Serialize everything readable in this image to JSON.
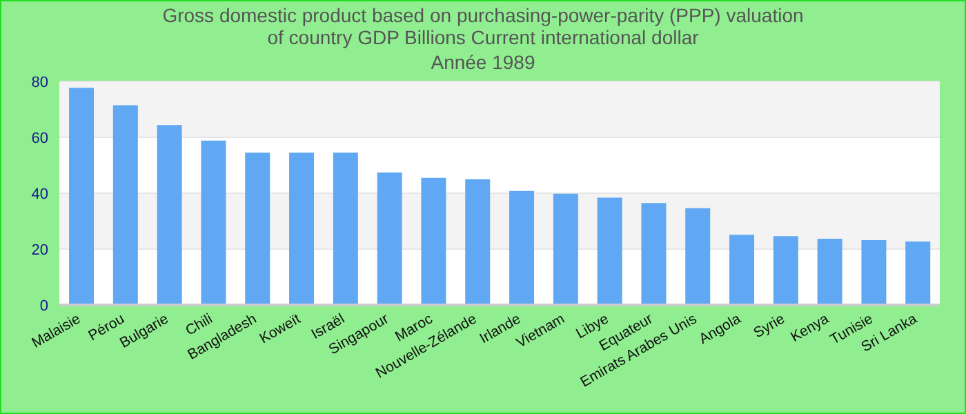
{
  "chart_data": {
    "type": "bar",
    "title": "Gross domestic product based on purchasing-power-parity (PPP) valuation of country GDP Billions Current international dollar",
    "subtitle": "Année 1989",
    "categories": [
      "Malaisie",
      "Pérou",
      "Bulgarie",
      "Chili",
      "Bangladesh",
      "Koweït",
      "Israël",
      "Singapour",
      "Maroc",
      "Nouvelle-Zélande",
      "Irlande",
      "Vietnam",
      "Libye",
      "Equateur",
      "Emirats Arabes Unis",
      "Angola",
      "Syrie",
      "Kenya",
      "Tunisie",
      "Sri Lanka"
    ],
    "values": [
      77.7,
      71.5,
      64.4,
      58.8,
      54.5,
      54.5,
      54.5,
      47.4,
      45.5,
      45,
      40.8,
      39.8,
      38.4,
      36.5,
      34.6,
      25.1,
      24.6,
      23.7,
      23.2,
      22.7
    ],
    "color": "#60a8f4",
    "ylim": [
      0,
      80
    ],
    "yticks": [
      0,
      20,
      40,
      60,
      80
    ],
    "grid": "y",
    "legend": false
  }
}
